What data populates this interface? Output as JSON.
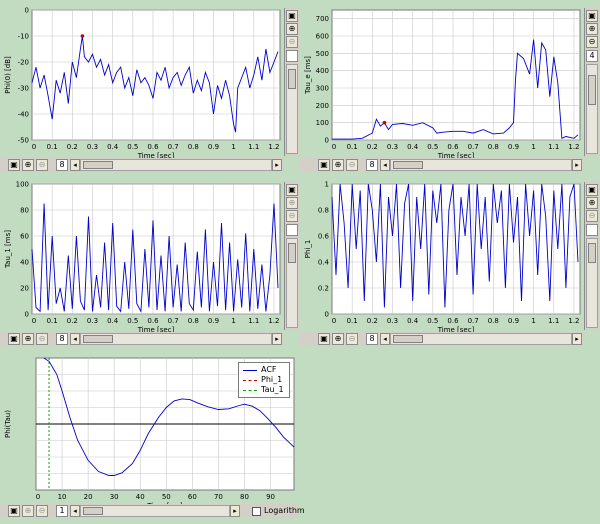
{
  "colors": {
    "background": "#c2dcc2",
    "line": "#0000cc",
    "marker": "#cc0000",
    "phi_dash": "#cc0000",
    "tau_dash": "#00aa00"
  },
  "panels": [
    {
      "id": "phi0",
      "ylabel": "Phi(0) [dB]",
      "xlabel": "Time [sec]",
      "page_number": "8"
    },
    {
      "id": "taue",
      "ylabel": "Tau_e [ms]",
      "xlabel": "Time [sec]",
      "page_number": "8",
      "side_number": "4"
    },
    {
      "id": "tau1",
      "ylabel": "Tau_1 [ms]",
      "xlabel": "Time [sec]",
      "page_number": "8"
    },
    {
      "id": "phi1",
      "ylabel": "Phi_1",
      "xlabel": "Time [sec]",
      "page_number": "8"
    },
    {
      "id": "acf",
      "ylabel": "Phi(Tau)",
      "xlabel": "Time [ms]",
      "page_number": "1",
      "logarithm_label": "Logarithm"
    }
  ],
  "side_icons": [
    "restore-icon",
    "zoom-in-icon",
    "zoom-out-icon"
  ],
  "bottom_icons": [
    "restore-icon",
    "zoom-in-icon",
    "zoom-out-icon"
  ],
  "legend": [
    "ACF",
    "Phi_1",
    "Tau_1"
  ],
  "chart_data": [
    {
      "type": "line",
      "name": "phi0",
      "ylabel": "Phi(0) [dB]",
      "xlabel": "Time [sec]",
      "xlim": [
        0,
        1.23
      ],
      "ylim": [
        -50,
        0
      ],
      "xticks": [
        0.1,
        0.2,
        0.3,
        0.4,
        0.5,
        0.6,
        0.7,
        0.8,
        0.9,
        1,
        1.1,
        1.2
      ],
      "yticks": [
        0,
        -10,
        -20,
        -30,
        -40,
        -50
      ],
      "x": [
        0,
        0.02,
        0.04,
        0.06,
        0.08,
        0.1,
        0.12,
        0.14,
        0.16,
        0.18,
        0.2,
        0.22,
        0.24,
        0.25,
        0.26,
        0.28,
        0.3,
        0.32,
        0.34,
        0.36,
        0.38,
        0.4,
        0.42,
        0.44,
        0.46,
        0.48,
        0.5,
        0.52,
        0.54,
        0.56,
        0.58,
        0.6,
        0.62,
        0.64,
        0.66,
        0.68,
        0.7,
        0.72,
        0.74,
        0.76,
        0.78,
        0.8,
        0.82,
        0.84,
        0.86,
        0.88,
        0.9,
        0.92,
        0.94,
        0.96,
        0.98,
        1.0,
        1.01,
        1.02,
        1.04,
        1.06,
        1.08,
        1.1,
        1.12,
        1.14,
        1.16,
        1.18,
        1.2,
        1.22
      ],
      "y": [
        -28,
        -22,
        -30,
        -25,
        -33,
        -42,
        -27,
        -32,
        -24,
        -36,
        -20,
        -26,
        -15,
        -10,
        -18,
        -20,
        -17,
        -22,
        -19,
        -25,
        -21,
        -28,
        -24,
        -22,
        -30,
        -26,
        -33,
        -23,
        -28,
        -26,
        -29,
        -34,
        -24,
        -27,
        -22,
        -30,
        -26,
        -24,
        -29,
        -25,
        -22,
        -32,
        -27,
        -31,
        -24,
        -28,
        -40,
        -29,
        -34,
        -27,
        -33,
        -44,
        -47,
        -30,
        -26,
        -22,
        -30,
        -25,
        -18,
        -27,
        -15,
        -24,
        -20,
        -16
      ],
      "marker": {
        "x": 0.25,
        "y": -10
      }
    },
    {
      "type": "line",
      "name": "taue",
      "ylabel": "Tau_e [ms]",
      "xlabel": "Time [sec]",
      "xlim": [
        0,
        1.23
      ],
      "ylim": [
        0,
        750
      ],
      "xticks": [
        0.1,
        0.2,
        0.3,
        0.4,
        0.5,
        0.6,
        0.7,
        0.8,
        0.9,
        1,
        1.1,
        1.2
      ],
      "yticks": [
        0,
        100,
        200,
        300,
        400,
        500,
        600,
        700
      ],
      "x": [
        0,
        0.1,
        0.15,
        0.2,
        0.22,
        0.24,
        0.26,
        0.28,
        0.3,
        0.35,
        0.4,
        0.45,
        0.5,
        0.52,
        0.55,
        0.6,
        0.65,
        0.7,
        0.75,
        0.8,
        0.85,
        0.88,
        0.9,
        0.91,
        0.92,
        0.95,
        0.98,
        1.0,
        1.02,
        1.04,
        1.06,
        1.08,
        1.1,
        1.12,
        1.14,
        1.16,
        1.2,
        1.22
      ],
      "y": [
        5,
        5,
        10,
        40,
        120,
        80,
        100,
        60,
        90,
        95,
        85,
        100,
        70,
        40,
        45,
        50,
        50,
        40,
        60,
        35,
        40,
        70,
        100,
        350,
        500,
        470,
        380,
        580,
        300,
        560,
        520,
        250,
        480,
        330,
        10,
        20,
        10,
        30
      ],
      "marker": {
        "x": 0.26,
        "y": 100
      }
    },
    {
      "type": "line",
      "name": "tau1",
      "ylabel": "Tau_1 [ms]",
      "xlabel": "Time [sec]",
      "xlim": [
        0,
        1.23
      ],
      "ylim": [
        0,
        100
      ],
      "xticks": [
        0.1,
        0.2,
        0.3,
        0.4,
        0.5,
        0.6,
        0.7,
        0.8,
        0.9,
        1,
        1.1,
        1.2
      ],
      "yticks": [
        0,
        20,
        40,
        60,
        80,
        100
      ],
      "x": [
        0,
        0.02,
        0.04,
        0.06,
        0.08,
        0.1,
        0.12,
        0.14,
        0.16,
        0.18,
        0.2,
        0.22,
        0.24,
        0.26,
        0.28,
        0.3,
        0.32,
        0.34,
        0.36,
        0.38,
        0.4,
        0.42,
        0.44,
        0.46,
        0.48,
        0.5,
        0.52,
        0.54,
        0.56,
        0.58,
        0.6,
        0.62,
        0.64,
        0.66,
        0.68,
        0.7,
        0.72,
        0.74,
        0.76,
        0.78,
        0.8,
        0.82,
        0.84,
        0.86,
        0.88,
        0.9,
        0.92,
        0.94,
        0.96,
        0.98,
        1.0,
        1.02,
        1.04,
        1.06,
        1.08,
        1.1,
        1.12,
        1.14,
        1.16,
        1.18,
        1.2,
        1.22
      ],
      "y": [
        50,
        5,
        2,
        85,
        3,
        60,
        8,
        20,
        2,
        45,
        4,
        60,
        10,
        3,
        75,
        2,
        30,
        5,
        55,
        3,
        70,
        6,
        2,
        40,
        4,
        65,
        8,
        2,
        50,
        5,
        72,
        3,
        45,
        2,
        60,
        5,
        38,
        2,
        55,
        8,
        3,
        48,
        5,
        65,
        2,
        40,
        6,
        70,
        3,
        55,
        2,
        42,
        5,
        62,
        2,
        50,
        4,
        38,
        2,
        30,
        85,
        20
      ]
    },
    {
      "type": "line",
      "name": "phi1",
      "ylabel": "Phi_1",
      "xlabel": "Time [sec]",
      "xlim": [
        0,
        1.23
      ],
      "ylim": [
        0,
        1
      ],
      "xticks": [
        0.1,
        0.2,
        0.3,
        0.4,
        0.5,
        0.6,
        0.7,
        0.8,
        0.9,
        1,
        1.1,
        1.2
      ],
      "yticks": [
        0,
        0.2,
        0.4,
        0.6,
        0.8,
        1
      ],
      "x": [
        0,
        0.02,
        0.04,
        0.06,
        0.08,
        0.1,
        0.12,
        0.14,
        0.16,
        0.18,
        0.2,
        0.22,
        0.24,
        0.26,
        0.28,
        0.3,
        0.32,
        0.34,
        0.36,
        0.38,
        0.4,
        0.42,
        0.44,
        0.46,
        0.48,
        0.5,
        0.52,
        0.54,
        0.56,
        0.58,
        0.6,
        0.62,
        0.64,
        0.66,
        0.68,
        0.7,
        0.72,
        0.74,
        0.76,
        0.78,
        0.8,
        0.82,
        0.84,
        0.86,
        0.88,
        0.9,
        0.92,
        0.94,
        0.96,
        0.98,
        1.0,
        1.02,
        1.04,
        1.06,
        1.08,
        1.1,
        1.12,
        1.14,
        1.16,
        1.18,
        1.2,
        1.22
      ],
      "y": [
        0.9,
        0.3,
        1,
        0.7,
        0.2,
        1,
        0.5,
        0.95,
        0.1,
        1,
        0.8,
        0.4,
        1,
        0.05,
        0.9,
        0.6,
        1,
        0.2,
        0.85,
        1,
        0.1,
        0.9,
        0.5,
        1,
        0.15,
        0.95,
        0.7,
        1,
        0.05,
        0.8,
        1,
        0.3,
        0.9,
        0.6,
        1,
        0.15,
        1,
        0.5,
        0.9,
        0.25,
        1,
        0.7,
        0.95,
        0.2,
        1,
        0.55,
        0.9,
        0.1,
        1,
        0.6,
        0.95,
        0.3,
        1,
        0.75,
        0.1,
        0.95,
        0.5,
        1,
        0.2,
        0.9,
        1,
        0.4
      ]
    },
    {
      "type": "line",
      "name": "acf",
      "ylabel": "Phi(Tau)",
      "xlabel": "Time [ms]",
      "xlim": [
        0,
        99
      ],
      "ylim": [
        -1,
        1
      ],
      "xticks": [
        10,
        20,
        30,
        40,
        50,
        60,
        70,
        80,
        90
      ],
      "yticks": [],
      "x": [
        3,
        5,
        8,
        10,
        13,
        16,
        20,
        24,
        28,
        30,
        33,
        37,
        40,
        43,
        47,
        50,
        53,
        56,
        59,
        62,
        66,
        70,
        74,
        78,
        80,
        83,
        86,
        89,
        92,
        95,
        99
      ],
      "y": [
        1,
        0.95,
        0.75,
        0.5,
        0.1,
        -0.25,
        -0.55,
        -0.72,
        -0.78,
        -0.78,
        -0.74,
        -0.6,
        -0.4,
        -0.15,
        0.1,
        0.25,
        0.35,
        0.38,
        0.37,
        0.32,
        0.26,
        0.22,
        0.23,
        0.28,
        0.3,
        0.27,
        0.2,
        0.08,
        -0.05,
        -0.2,
        -0.35
      ],
      "series": [
        {
          "name": "ACF"
        },
        {
          "name": "Phi_1"
        },
        {
          "name": "Tau_1"
        }
      ],
      "vlines": [
        {
          "name": "Tau_1",
          "x": 5
        }
      ],
      "legend_position": "top-right"
    }
  ]
}
